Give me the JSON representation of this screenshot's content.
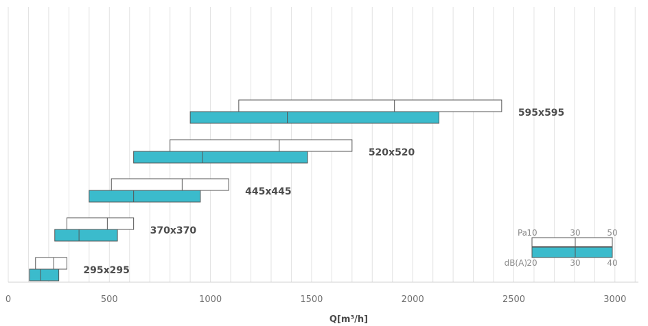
{
  "chart_data": {
    "type": "bar",
    "xlabel": "Q[m³/h]",
    "x_ticks": [
      "0",
      "500",
      "1000",
      "1500",
      "2000",
      "2500",
      "3000"
    ],
    "xlim": [
      0,
      3150
    ],
    "grid": "vertical lines every 100",
    "colors": {
      "pa_bar": "#ffffff",
      "db_bar": "#3bbbcc",
      "outline": "#555555",
      "grid": "#e2e2e2"
    },
    "rows": [
      {
        "name": "595x595",
        "pa_range": [
          1140,
          2440
        ],
        "pa_mid": 1910,
        "db_range": [
          900,
          2130
        ],
        "db_mid": 1380
      },
      {
        "name": "520x520",
        "pa_range": [
          800,
          1700
        ],
        "pa_mid": 1340,
        "db_range": [
          620,
          1480
        ],
        "db_mid": 960
      },
      {
        "name": "445x445",
        "pa_range": [
          510,
          1090
        ],
        "pa_mid": 860,
        "db_range": [
          400,
          950
        ],
        "db_mid": 620
      },
      {
        "name": "370x370",
        "pa_range": [
          290,
          620
        ],
        "pa_mid": 490,
        "db_range": [
          230,
          540
        ],
        "db_mid": 350
      },
      {
        "name": "295x295",
        "pa_range": [
          135,
          290
        ],
        "pa_mid": 225,
        "db_range": [
          105,
          250
        ],
        "db_mid": 160
      }
    ],
    "legend": {
      "pa_label": "Pa",
      "pa_ticks": [
        "10",
        "30",
        "50"
      ],
      "db_label": "dB(A)",
      "db_ticks": [
        "20",
        "30",
        "40"
      ],
      "placement": "bottom-right"
    }
  }
}
